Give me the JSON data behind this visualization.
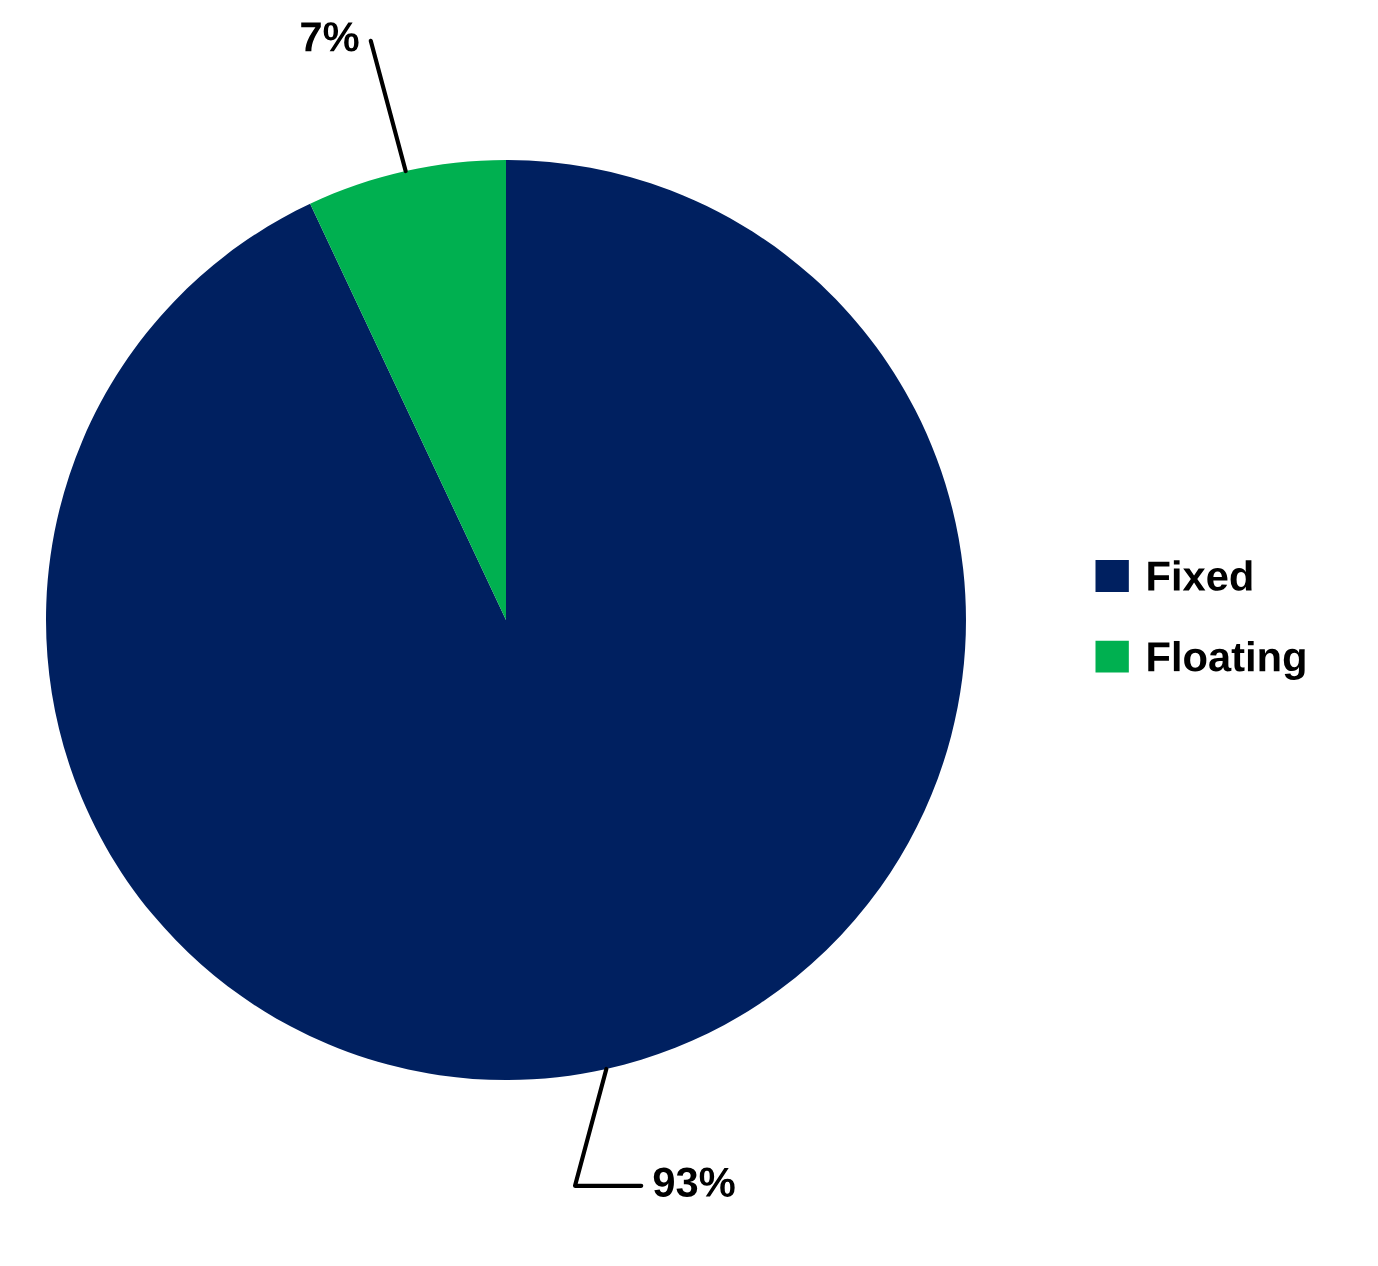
{
  "chart_data": {
    "type": "pie",
    "categories": [
      "Fixed",
      "Floating"
    ],
    "values": [
      93,
      7
    ],
    "colors": [
      "#002060",
      "#00b050"
    ],
    "value_labels": [
      "93%",
      "7%"
    ],
    "legend": "right"
  }
}
